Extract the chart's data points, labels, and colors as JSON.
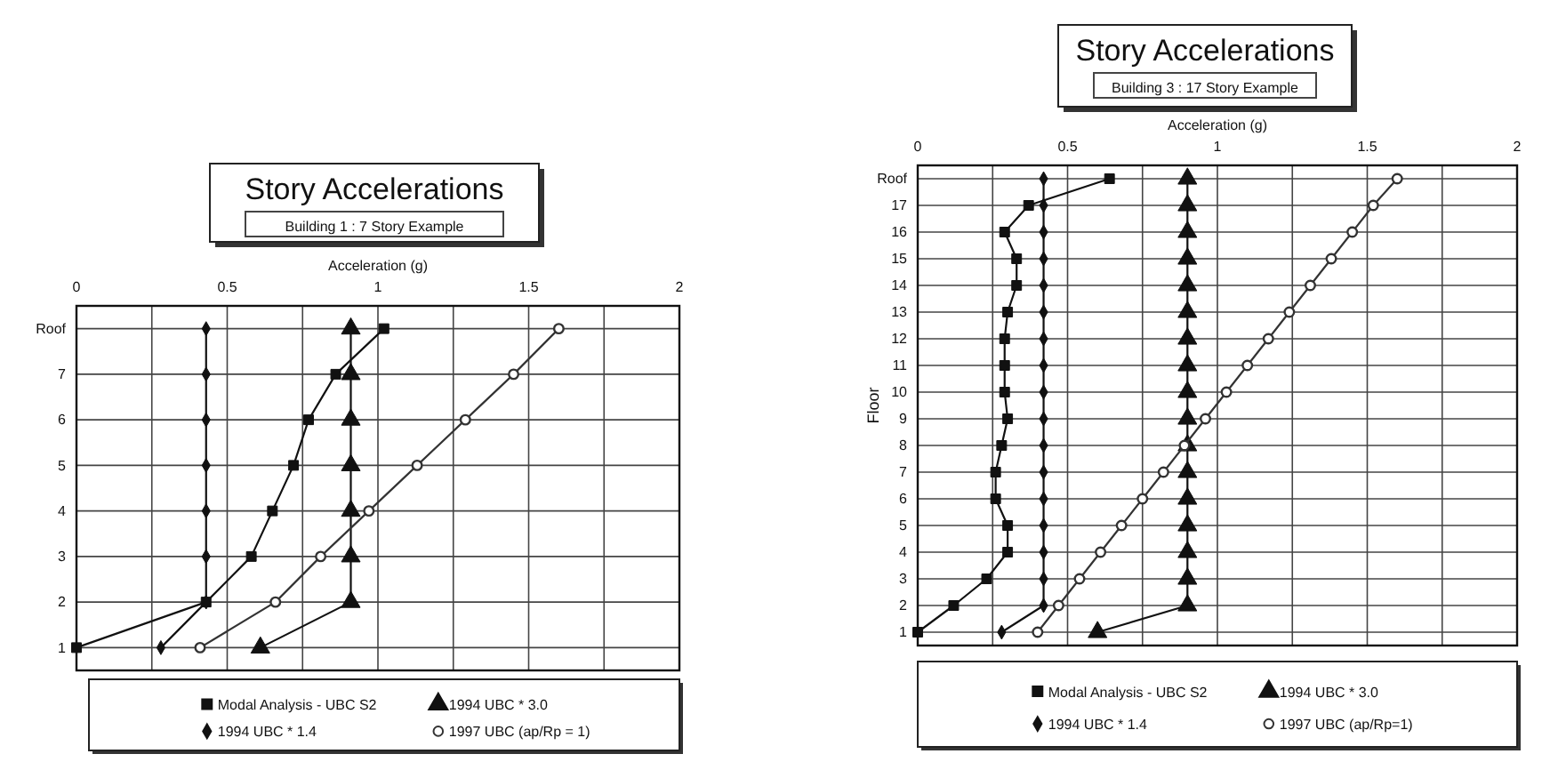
{
  "chart_data": [
    {
      "type": "line",
      "title": "Story Accelerations",
      "subtitle": "Building 1 : 7 Story Example",
      "xlabel": "Acceleration (g)",
      "orientation": "horizontal",
      "categories": [
        "Roof",
        "7",
        "6",
        "5",
        "4",
        "3",
        "2",
        "1"
      ],
      "xlim": [
        0,
        2
      ],
      "xticks": [
        0,
        {
          "value": 0.25,
          "label": null
        },
        0.5,
        {
          "value": 0.75,
          "label": null
        },
        1,
        {
          "value": 1.25,
          "label": null
        },
        1.5,
        {
          "value": 1.75,
          "label": null
        },
        2
      ],
      "grid": true,
      "legend": "bottom",
      "series": [
        {
          "name": "Modal Analysis - UBC S2",
          "color": "#111111",
          "marker": "square",
          "values": [
            1.02,
            0.86,
            0.77,
            0.72,
            0.65,
            0.58,
            0.43,
            0
          ]
        },
        {
          "name": "1994 UBC * 3.0",
          "color": "#111111",
          "marker": "triangle",
          "values": [
            0.91,
            0.91,
            0.91,
            0.91,
            0.91,
            0.91,
            0.91,
            0.61
          ]
        },
        {
          "name": "1994 UBC * 1.4",
          "color": "#111111",
          "marker": "diamond",
          "values": [
            0.43,
            0.43,
            0.43,
            0.43,
            0.43,
            0.43,
            0.43,
            0.28
          ]
        },
        {
          "name": "1997 UBC (ap/Rp = 1)",
          "color": "#333333",
          "marker": "circle",
          "values": [
            1.6,
            1.45,
            1.29,
            1.13,
            0.97,
            0.81,
            0.66,
            0.41
          ]
        }
      ]
    },
    {
      "type": "line",
      "title": "Story Accelerations",
      "subtitle": "Building 3 : 17 Story Example",
      "xlabel": "Acceleration (g)",
      "ylabel": "Floor",
      "orientation": "horizontal",
      "categories": [
        "Roof",
        "17",
        "16",
        "15",
        "14",
        "13",
        "12",
        "11",
        "10",
        "9",
        "8",
        "7",
        "6",
        "5",
        "4",
        "3",
        "2",
        "1"
      ],
      "xlim": [
        0,
        2
      ],
      "xticks": [
        0,
        {
          "value": 0.25,
          "label": null
        },
        0.5,
        {
          "value": 0.75,
          "label": null
        },
        1,
        {
          "value": 1.25,
          "label": null
        },
        1.5,
        {
          "value": 1.75,
          "label": null
        },
        2
      ],
      "grid": true,
      "legend": "bottom",
      "series": [
        {
          "name": "Modal Analysis - UBC S2",
          "color": "#111111",
          "marker": "square",
          "values": [
            0.64,
            0.37,
            0.29,
            0.33,
            0.33,
            0.3,
            0.29,
            0.29,
            0.29,
            0.3,
            0.28,
            0.26,
            0.26,
            0.3,
            0.3,
            0.23,
            0.12,
            0
          ]
        },
        {
          "name": "1994 UBC * 3.0",
          "color": "#111111",
          "marker": "triangle",
          "values": [
            0.9,
            0.9,
            0.9,
            0.9,
            0.9,
            0.9,
            0.9,
            0.9,
            0.9,
            0.9,
            0.9,
            0.9,
            0.9,
            0.9,
            0.9,
            0.9,
            0.9,
            0.6
          ]
        },
        {
          "name": "1994 UBC * 1.4",
          "color": "#111111",
          "marker": "diamond",
          "values": [
            0.42,
            0.42,
            0.42,
            0.42,
            0.42,
            0.42,
            0.42,
            0.42,
            0.42,
            0.42,
            0.42,
            0.42,
            0.42,
            0.42,
            0.42,
            0.42,
            0.42,
            0.28
          ]
        },
        {
          "name": "1997 UBC (ap/Rp=1)",
          "color": "#333333",
          "marker": "circle",
          "values": [
            1.6,
            1.52,
            1.45,
            1.38,
            1.31,
            1.24,
            1.17,
            1.1,
            1.03,
            0.96,
            0.89,
            0.82,
            0.75,
            0.68,
            0.61,
            0.54,
            0.47,
            0.4
          ]
        }
      ]
    }
  ]
}
